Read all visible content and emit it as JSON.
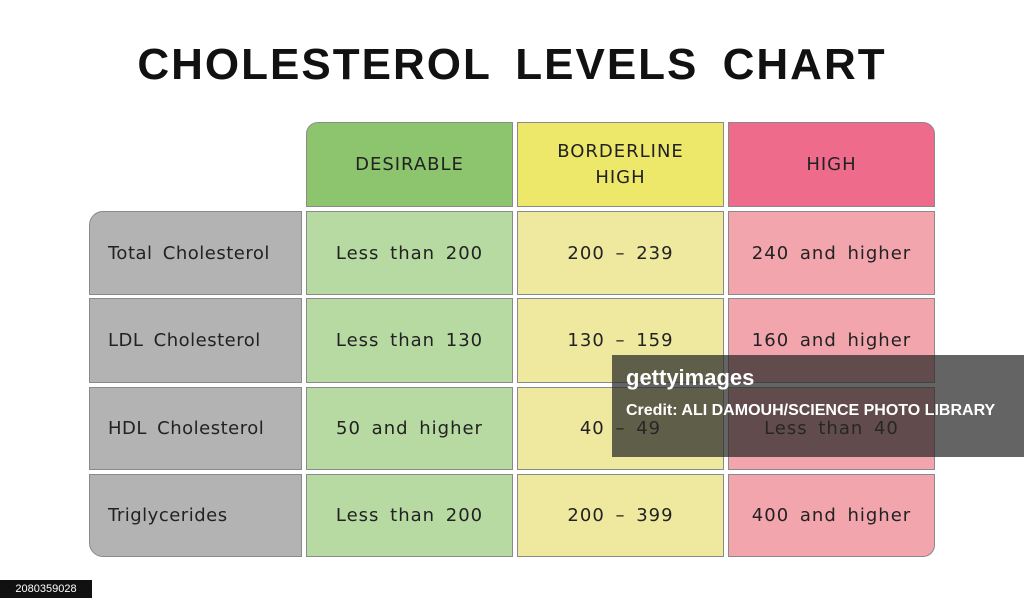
{
  "title": "CHOLESTEROL LEVELS CHART",
  "table": {
    "columns": [
      "DESIRABLE",
      "BORDERLINE HIGH",
      "HIGH"
    ],
    "rows": [
      [
        "Total Cholesterol",
        "Less than 200",
        "200 – 239",
        "240 and higher"
      ],
      [
        "LDL Cholesterol",
        "Less than 130",
        "130 – 159",
        "160 and higher"
      ],
      [
        "HDL Cholesterol",
        "50 and higher",
        "40 – 49",
        "Less than 40"
      ],
      [
        "Triglycerides",
        "Less than 200",
        "200 – 399",
        "400 and higher"
      ]
    ]
  },
  "watermark": {
    "logo": "gettyimages",
    "credit": "Credit: ALI DAMOUH/SCIENCE PHOTO LIBRARY",
    "image_id": "2080359028"
  }
}
